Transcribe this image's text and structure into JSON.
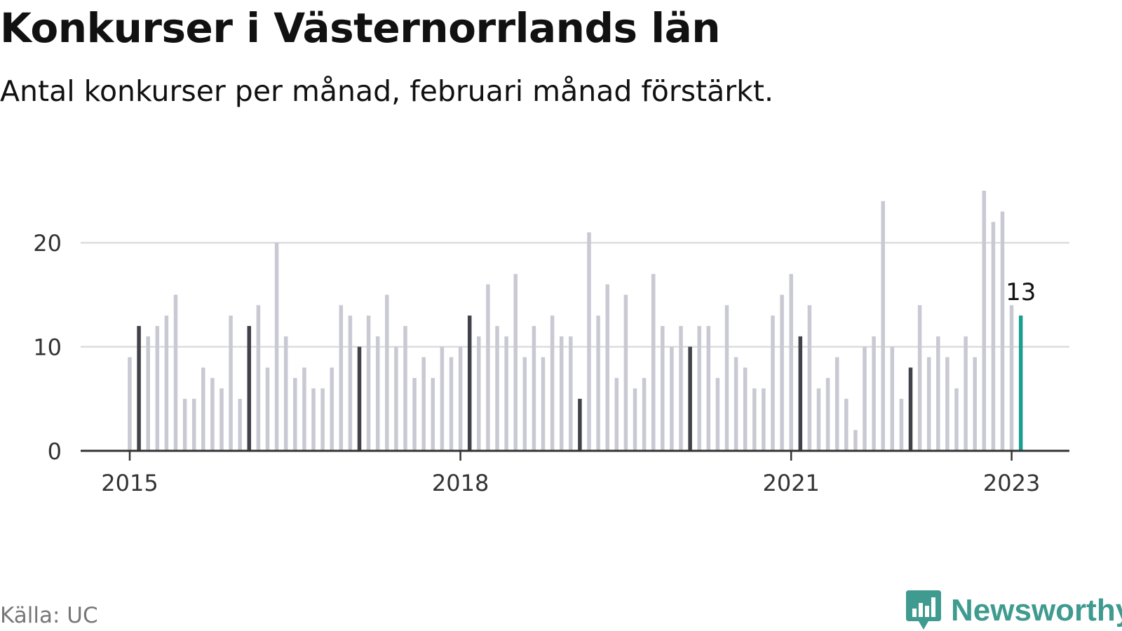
{
  "title": "Konkurser i Västernorrlands län",
  "subtitle": "Antal konkurser per månad, februari månad förstärkt.",
  "source": "Källa: UC",
  "brand": {
    "name": "Newsworthy",
    "icon": "bar-chart-speech-bubble-icon"
  },
  "colors": {
    "regular": "#c9c9d3",
    "highlight": "#414149",
    "latest": "#1a9e8f",
    "axis": "#333333",
    "grid": "#dddddd"
  },
  "chart_data": {
    "type": "bar",
    "x_start": "2015-01",
    "x_end": "2023-02",
    "values": [
      9,
      12,
      11,
      12,
      13,
      15,
      5,
      5,
      8,
      7,
      6,
      13,
      5,
      12,
      14,
      8,
      20,
      11,
      7,
      8,
      6,
      6,
      8,
      14,
      13,
      10,
      13,
      11,
      15,
      10,
      12,
      7,
      9,
      7,
      10,
      9,
      10,
      13,
      11,
      16,
      12,
      11,
      17,
      9,
      12,
      9,
      13,
      11,
      11,
      5,
      21,
      13,
      16,
      7,
      15,
      6,
      7,
      17,
      12,
      10,
      12,
      10,
      12,
      12,
      7,
      14,
      9,
      8,
      6,
      6,
      13,
      15,
      17,
      11,
      14,
      6,
      7,
      9,
      5,
      2,
      10,
      11,
      24,
      10,
      5,
      8,
      14,
      9,
      11,
      9,
      6,
      11,
      9,
      25,
      22,
      23,
      14,
      13
    ],
    "highlight": "february",
    "yticks": [
      0,
      10,
      20
    ],
    "xtick_labels": [
      "2015",
      "2018",
      "2021",
      "2023"
    ],
    "ylim": [
      0,
      25
    ],
    "grid": true,
    "annotation": {
      "label": "13",
      "target": "2023-02"
    }
  }
}
